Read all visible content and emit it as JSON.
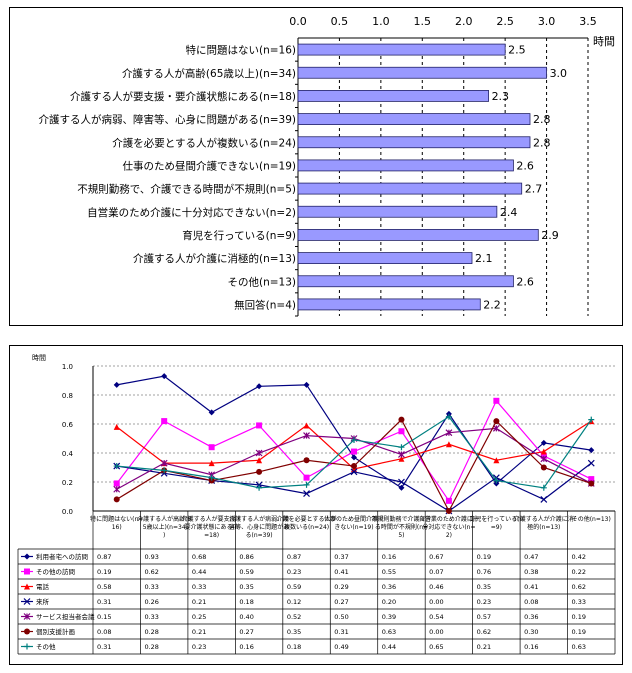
{
  "chart_data": [
    {
      "type": "bar",
      "orientation": "horizontal",
      "unit_label": "時間",
      "xlim": [
        0,
        3.5
      ],
      "xticks": [
        "0.0",
        "0.5",
        "1.0",
        "1.5",
        "2.0",
        "2.5",
        "3.0",
        "3.5"
      ],
      "categories": [
        "特に問題はない(n=16)",
        "介護する人が高齢(65歳以上)(n=34)",
        "介護する人が要支援・要介護状態にある(n=18)",
        "介護する人が病弱、障害等、心身に問題がある(n=39)",
        "介護を必要とする人が複数いる(n=24)",
        "仕事のため昼間介護できない(n=19)",
        "不規則勤務で、介護できる時間が不規則(n=5)",
        "自営業のため介護に十分対応できない(n=2)",
        "育児を行っている(n=9)",
        "介護する人が介護に消極的(n=13)",
        "その他(n=13)",
        "無回答(n=4)"
      ],
      "values": [
        2.5,
        3.0,
        2.3,
        2.8,
        2.8,
        2.6,
        2.7,
        2.4,
        2.9,
        2.1,
        2.6,
        2.2
      ],
      "value_labels": [
        "2.5",
        "3.0",
        "2.3",
        "2.8",
        "2.8",
        "2.6",
        "2.7",
        "2.4",
        "2.9",
        "2.1",
        "2.6",
        "2.2"
      ],
      "colors": {
        "bar": "#9999ff",
        "bar_border": "#222266",
        "grid": "#000000"
      }
    },
    {
      "type": "line",
      "unit_label": "時間",
      "ylim": [
        0,
        1.0
      ],
      "yticks": [
        "0.0",
        "0.2",
        "0.4",
        "0.6",
        "0.8",
        "1.0"
      ],
      "categories": [
        "特に問題はない(n=16)",
        "介護する人が高齢(65歳以上)(n=34)",
        "介護する人が要支援・要介護状態にある(n=18)",
        "介護する人が病弱、障害等、心身に問題がある(n=39)",
        "介護を必要とする人が複数いる(n=24)",
        "仕事のため昼間介護できない(n=19)",
        "不規則勤務で介護できる時間が不規則(n=5)",
        "自営業のため介護に十分対応できない(n=2)",
        "育児を行っている(n=9)",
        "介護する人が介護に消極的(n=13)",
        "その他(n=13)"
      ],
      "series": [
        {
          "name": "利用者宅への訪問",
          "color": "#000080",
          "marker": "diamond",
          "values": [
            0.87,
            0.93,
            0.68,
            0.86,
            0.87,
            0.37,
            0.16,
            0.67,
            0.19,
            0.47,
            0.42
          ],
          "labels": [
            "0.87",
            "0.93",
            "0.68",
            "0.86",
            "0.87",
            "0.37",
            "0.16",
            "0.67",
            "0.19",
            "0.47",
            "0.42"
          ]
        },
        {
          "name": "その他の訪問",
          "color": "#ff00ff",
          "marker": "square",
          "values": [
            0.19,
            0.62,
            0.44,
            0.59,
            0.23,
            0.41,
            0.55,
            0.07,
            0.76,
            0.38,
            0.22
          ],
          "labels": [
            "0.19",
            "0.62",
            "0.44",
            "0.59",
            "0.23",
            "0.41",
            "0.55",
            "0.07",
            "0.76",
            "0.38",
            "0.22"
          ]
        },
        {
          "name": "電話",
          "color": "#ff0000",
          "marker": "triangle",
          "values": [
            0.58,
            0.33,
            0.33,
            0.35,
            0.59,
            0.29,
            0.36,
            0.46,
            0.35,
            0.41,
            0.62
          ],
          "labels": [
            "0.58",
            "0.33",
            "0.33",
            "0.35",
            "0.59",
            "0.29",
            "0.36",
            "0.46",
            "0.35",
            "0.41",
            "0.62"
          ]
        },
        {
          "name": "来所",
          "color": "#000080",
          "marker": "x",
          "values": [
            0.31,
            0.26,
            0.21,
            0.18,
            0.12,
            0.27,
            0.2,
            0.0,
            0.23,
            0.08,
            0.33
          ],
          "labels": [
            "0.31",
            "0.26",
            "0.21",
            "0.18",
            "0.12",
            "0.27",
            "0.20",
            "0.00",
            "0.23",
            "0.08",
            "0.33"
          ]
        },
        {
          "name": "サービス担当者会議",
          "color": "#800080",
          "marker": "star",
          "values": [
            0.15,
            0.33,
            0.25,
            0.4,
            0.52,
            0.5,
            0.39,
            0.54,
            0.57,
            0.36,
            0.19
          ],
          "labels": [
            "0.15",
            "0.33",
            "0.25",
            "0.40",
            "0.52",
            "0.50",
            "0.39",
            "0.54",
            "0.57",
            "0.36",
            "0.19"
          ]
        },
        {
          "name": "個別支援計画",
          "color": "#800000",
          "marker": "circle",
          "values": [
            0.08,
            0.28,
            0.21,
            0.27,
            0.35,
            0.31,
            0.63,
            0.0,
            0.62,
            0.3,
            0.19
          ],
          "labels": [
            "0.08",
            "0.28",
            "0.21",
            "0.27",
            "0.35",
            "0.31",
            "0.63",
            "0.00",
            "0.62",
            "0.30",
            "0.19"
          ]
        },
        {
          "name": "その他",
          "color": "#008080",
          "marker": "plus",
          "values": [
            0.31,
            0.28,
            0.23,
            0.16,
            0.18,
            0.49,
            0.44,
            0.65,
            0.21,
            0.16,
            0.63
          ],
          "labels": [
            "0.31",
            "0.28",
            "0.23",
            "0.16",
            "0.18",
            "0.49",
            "0.44",
            "0.65",
            "0.21",
            "0.16",
            "0.63"
          ]
        }
      ]
    }
  ]
}
